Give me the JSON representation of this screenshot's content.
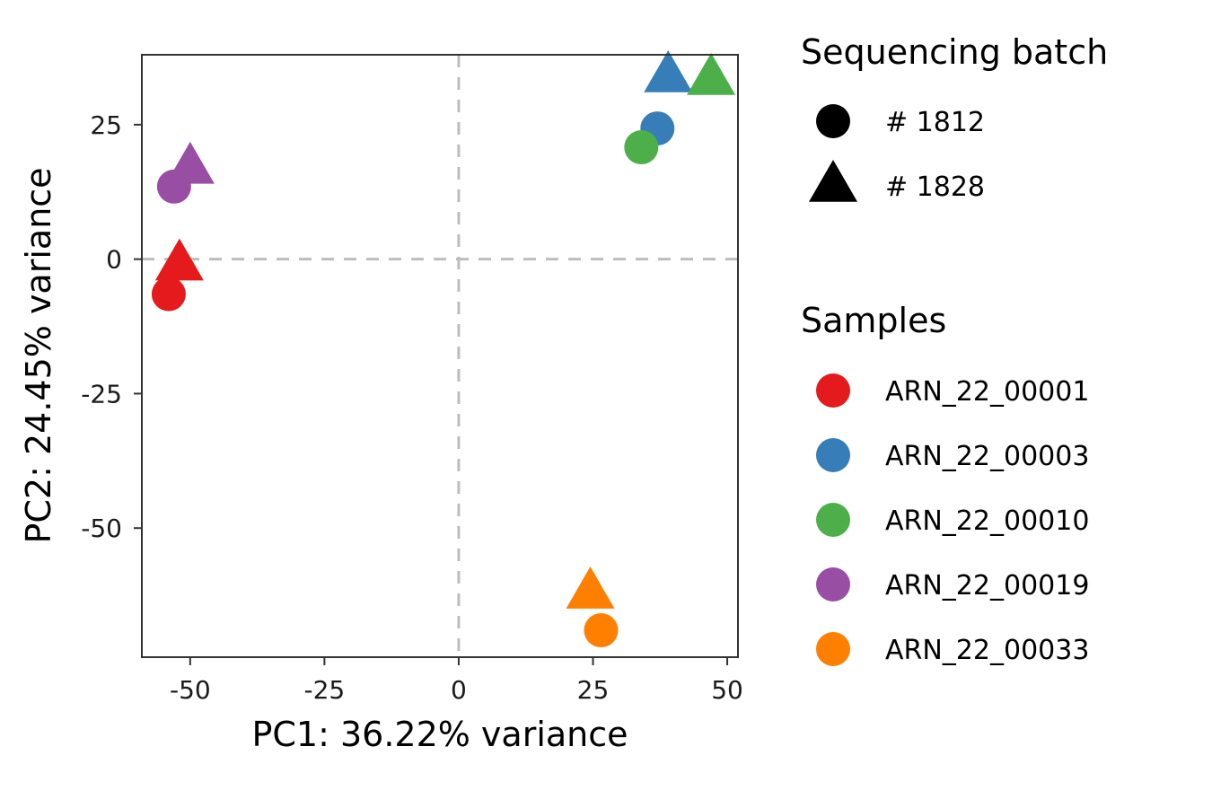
{
  "chart_data": {
    "type": "scatter",
    "xlabel": "PC1: 36.22% variance",
    "ylabel": "PC2: 24.45% variance",
    "xlim": [
      -59,
      52
    ],
    "ylim": [
      -74,
      38
    ],
    "xticks": [
      -50,
      -25,
      0,
      25,
      50
    ],
    "yticks": [
      -50,
      -25,
      0,
      25
    ],
    "reference_lines": {
      "x": 0,
      "y": 0,
      "style": "dashed"
    },
    "grid": false,
    "legend_position": "right",
    "shape_legend": {
      "title": "Sequencing batch",
      "entries": [
        {
          "label": "# 1812",
          "shape": "circle"
        },
        {
          "label": "# 1828",
          "shape": "triangle"
        }
      ]
    },
    "color_legend": {
      "title": "Samples",
      "entries": [
        {
          "label": "ARN_22_00001",
          "color": "#e41a1c"
        },
        {
          "label": "ARN_22_00003",
          "color": "#377eb8"
        },
        {
          "label": "ARN_22_00010",
          "color": "#4daf4a"
        },
        {
          "label": "ARN_22_00019",
          "color": "#984ea3"
        },
        {
          "label": "ARN_22_00033",
          "color": "#ff7f00"
        }
      ]
    },
    "points": [
      {
        "sample": "ARN_22_00001",
        "batch": "# 1828",
        "x": -52,
        "y": -1
      },
      {
        "sample": "ARN_22_00001",
        "batch": "# 1812",
        "x": -54,
        "y": -6.5
      },
      {
        "sample": "ARN_22_00003",
        "batch": "# 1828",
        "x": 39,
        "y": 34
      },
      {
        "sample": "ARN_22_00003",
        "batch": "# 1812",
        "x": 37,
        "y": 24.3
      },
      {
        "sample": "ARN_22_00010",
        "batch": "# 1828",
        "x": 47,
        "y": 33.5
      },
      {
        "sample": "ARN_22_00010",
        "batch": "# 1812",
        "x": 34,
        "y": 20.8
      },
      {
        "sample": "ARN_22_00019",
        "batch": "# 1828",
        "x": -50,
        "y": 17
      },
      {
        "sample": "ARN_22_00019",
        "batch": "# 1812",
        "x": -53,
        "y": 13.5
      },
      {
        "sample": "ARN_22_00033",
        "batch": "# 1828",
        "x": 24.5,
        "y": -62
      },
      {
        "sample": "ARN_22_00033",
        "batch": "# 1812",
        "x": 26.5,
        "y": -69
      }
    ]
  }
}
